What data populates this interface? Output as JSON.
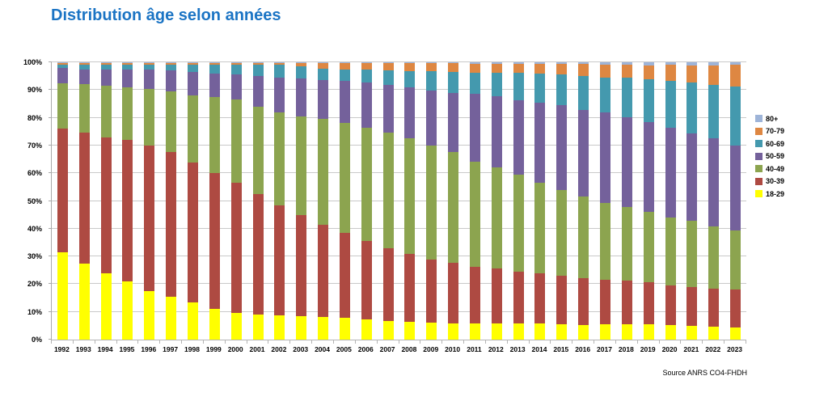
{
  "page": {
    "title": "Distribution âge selon années",
    "source": "Source ANRS CO4-FHDH"
  },
  "chart_data": {
    "type": "bar",
    "variant": "100%-stacked-column",
    "title": "Distribution âge selon années",
    "xlabel": "",
    "ylabel": "",
    "ylim": [
      0,
      100
    ],
    "grid": true,
    "legend_position": "right",
    "legend_order_top_to_bottom": [
      "80+",
      "70-79",
      "60-69",
      "50-59",
      "40-49",
      "30-39",
      "18-29"
    ],
    "y_ticks": [
      "0%",
      "10%",
      "20%",
      "30%",
      "40%",
      "50%",
      "60%",
      "70%",
      "80%",
      "90%",
      "100%"
    ],
    "categories": [
      "1992",
      "1993",
      "1994",
      "1995",
      "1996",
      "1997",
      "1998",
      "1999",
      "2000",
      "2001",
      "2002",
      "2003",
      "2004",
      "2005",
      "2006",
      "2007",
      "2008",
      "2009",
      "2010",
      "2011",
      "2012",
      "2013",
      "2014",
      "2015",
      "2016",
      "2017",
      "2018",
      "2019",
      "2020",
      "2021",
      "2022",
      "2023"
    ],
    "series": [
      {
        "name": "18-29",
        "color": "#ffff00",
        "values": [
          31.5,
          27.5,
          24.0,
          21.0,
          17.5,
          15.5,
          13.5,
          11.0,
          9.5,
          9.0,
          8.8,
          8.5,
          8.1,
          7.8,
          7.3,
          6.7,
          6.3,
          6.0,
          5.8,
          5.7,
          5.9,
          5.8,
          5.7,
          5.5,
          5.3,
          5.5,
          5.4,
          5.6,
          5.3,
          5.0,
          4.8,
          4.5
        ]
      },
      {
        "name": "30-39",
        "color": "#ae4a42",
        "values": [
          44.5,
          47.0,
          49.0,
          51.0,
          52.5,
          52.0,
          50.5,
          49.0,
          47.0,
          43.5,
          39.7,
          36.5,
          33.4,
          30.7,
          28.2,
          26.3,
          24.7,
          23.0,
          21.9,
          20.6,
          19.7,
          18.8,
          18.2,
          17.4,
          16.9,
          16.2,
          15.8,
          15.2,
          14.3,
          13.9,
          13.6,
          13.6
        ]
      },
      {
        "name": "40-49",
        "color": "#8ca44f",
        "values": [
          16.5,
          17.5,
          18.5,
          19.0,
          20.5,
          22.0,
          24.0,
          27.5,
          30.0,
          31.5,
          33.5,
          35.5,
          38.0,
          39.5,
          41.0,
          41.5,
          41.5,
          41.0,
          39.9,
          37.9,
          36.5,
          34.8,
          32.6,
          31.1,
          29.4,
          27.5,
          26.6,
          25.2,
          24.4,
          23.9,
          22.5,
          21.4
        ]
      },
      {
        "name": "50-59",
        "color": "#74619b",
        "values": [
          5.5,
          5.5,
          6.0,
          6.5,
          7.0,
          7.5,
          8.5,
          8.5,
          9.0,
          11.0,
          12.5,
          13.7,
          14.2,
          15.2,
          16.1,
          17.3,
          18.4,
          19.9,
          21.4,
          24.4,
          25.6,
          27.0,
          29.0,
          30.5,
          31.3,
          32.7,
          32.4,
          32.5,
          32.4,
          31.7,
          31.7,
          30.4
        ]
      },
      {
        "name": "60-69",
        "color": "#4499ae",
        "values": [
          1.0,
          1.5,
          1.5,
          1.5,
          1.5,
          2.0,
          2.5,
          3.0,
          3.5,
          4.0,
          4.5,
          4.5,
          4.0,
          4.3,
          4.7,
          5.3,
          6.0,
          6.8,
          7.5,
          7.7,
          8.5,
          9.7,
          10.3,
          11.0,
          12.2,
          12.7,
          14.2,
          15.4,
          17.0,
          18.1,
          19.3,
          21.4
        ]
      },
      {
        "name": "70-79",
        "color": "#de8742",
        "values": [
          0.8,
          0.8,
          0.8,
          0.8,
          0.8,
          0.8,
          0.8,
          0.8,
          0.8,
          0.8,
          0.8,
          1.0,
          2.0,
          2.2,
          2.4,
          2.6,
          2.8,
          3.0,
          3.1,
          3.2,
          3.3,
          3.4,
          3.6,
          3.8,
          4.2,
          4.4,
          4.6,
          5.0,
          5.6,
          6.2,
          7.0,
          7.8
        ]
      },
      {
        "name": "80+",
        "color": "#9eb4d8",
        "values": [
          0.2,
          0.2,
          0.2,
          0.2,
          0.2,
          0.2,
          0.2,
          0.2,
          0.2,
          0.2,
          0.2,
          0.3,
          0.3,
          0.3,
          0.3,
          0.3,
          0.3,
          0.3,
          0.4,
          0.5,
          0.5,
          0.5,
          0.6,
          0.7,
          0.7,
          1.0,
          1.0,
          1.1,
          1.0,
          1.2,
          1.1,
          0.9
        ]
      }
    ]
  }
}
